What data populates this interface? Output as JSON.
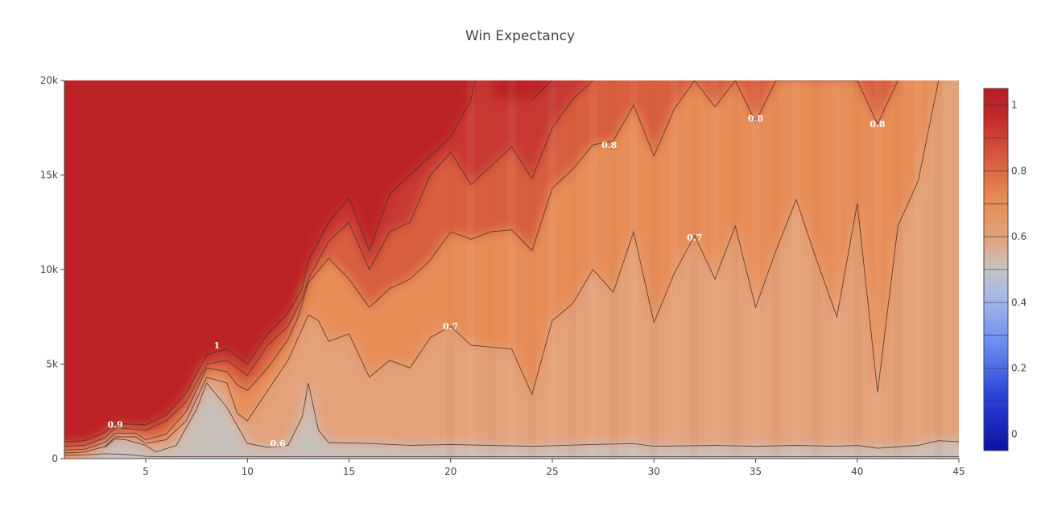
{
  "chart_data": {
    "type": "contour",
    "title": "Win Expectancy",
    "xlabel": "",
    "ylabel": "",
    "xlim": [
      1,
      45
    ],
    "ylim": [
      0,
      20000
    ],
    "x_ticks": [
      {
        "value": 5,
        "label": "5"
      },
      {
        "value": 10,
        "label": "10"
      },
      {
        "value": 15,
        "label": "15"
      },
      {
        "value": 20,
        "label": "20"
      },
      {
        "value": 25,
        "label": "25"
      },
      {
        "value": 30,
        "label": "30"
      },
      {
        "value": 35,
        "label": "35"
      },
      {
        "value": 40,
        "label": "40"
      },
      {
        "value": 45,
        "label": "45"
      }
    ],
    "y_ticks": [
      {
        "value": 0,
        "label": "0"
      },
      {
        "value": 5000,
        "label": "5k"
      },
      {
        "value": 10000,
        "label": "10k"
      },
      {
        "value": 15000,
        "label": "15k"
      },
      {
        "value": 20000,
        "label": "20k"
      }
    ],
    "colorbar": {
      "range": [
        -0.05,
        1.05
      ],
      "ticks": [
        {
          "value": 0,
          "label": "0"
        },
        {
          "value": 0.2,
          "label": "0.2"
        },
        {
          "value": 0.4,
          "label": "0.4"
        },
        {
          "value": 0.6,
          "label": "0.6"
        },
        {
          "value": 0.8,
          "label": "0.8"
        },
        {
          "value": 1,
          "label": "1"
        }
      ],
      "levels": [
        0,
        0.1,
        0.2,
        0.3,
        0.4,
        0.5,
        0.6,
        0.7,
        0.8,
        0.9,
        1.0
      ],
      "colorscale": [
        [
          0.0,
          "#0a10a8"
        ],
        [
          0.15,
          "#2a43d8"
        ],
        [
          0.3,
          "#6f8ef2"
        ],
        [
          0.42,
          "#a3b8e8"
        ],
        [
          0.5,
          "#c6c3c0"
        ],
        [
          0.58,
          "#e2a47e"
        ],
        [
          0.7,
          "#e88a52"
        ],
        [
          0.82,
          "#d5553c"
        ],
        [
          0.92,
          "#c22a2c"
        ],
        [
          1.0,
          "#b71c24"
        ]
      ]
    },
    "contours": [
      {
        "level": 0.6,
        "points": [
          [
            1,
            180
          ],
          [
            2,
            200
          ],
          [
            3,
            260
          ],
          [
            4,
            220
          ],
          [
            5,
            120
          ],
          [
            6,
            100
          ],
          [
            45,
            100
          ]
        ]
      },
      {
        "level": 0.6,
        "points": [
          [
            3,
            600
          ],
          [
            3.5,
            1050
          ],
          [
            4,
            1000
          ],
          [
            5,
            700
          ],
          [
            5.5,
            350
          ],
          [
            6.5,
            700
          ],
          [
            7.5,
            2600
          ],
          [
            8,
            4000
          ],
          [
            9,
            2700
          ],
          [
            10,
            800
          ],
          [
            11,
            600
          ],
          [
            12,
            700
          ],
          [
            12.7,
            2200
          ],
          [
            13,
            4000
          ],
          [
            13.5,
            1500
          ],
          [
            14,
            850
          ],
          [
            16,
            800
          ],
          [
            18,
            700
          ],
          [
            20,
            750
          ],
          [
            24,
            650
          ],
          [
            27,
            750
          ],
          [
            29,
            800
          ],
          [
            30,
            650
          ],
          [
            33,
            700
          ],
          [
            35,
            650
          ],
          [
            37,
            700
          ],
          [
            39,
            650
          ],
          [
            40,
            700
          ],
          [
            41,
            550
          ],
          [
            43,
            700
          ],
          [
            44,
            950
          ],
          [
            45,
            900
          ]
        ]
      },
      {
        "level": 0.7,
        "points": [
          [
            1,
            300
          ],
          [
            2,
            350
          ],
          [
            3,
            650
          ],
          [
            3.5,
            1150
          ],
          [
            4.5,
            1150
          ],
          [
            5,
            800
          ],
          [
            6,
            1000
          ],
          [
            7,
            2000
          ],
          [
            8,
            4300
          ],
          [
            9,
            4000
          ],
          [
            9.5,
            2400
          ],
          [
            10,
            2000
          ],
          [
            11,
            3600
          ],
          [
            12,
            5200
          ],
          [
            13,
            7600
          ],
          [
            13.5,
            7300
          ],
          [
            14,
            6200
          ],
          [
            15,
            6600
          ],
          [
            16,
            4300
          ],
          [
            17,
            5200
          ],
          [
            18,
            4800
          ],
          [
            19,
            6400
          ],
          [
            20,
            7000
          ],
          [
            21,
            6000
          ],
          [
            22,
            5900
          ],
          [
            23,
            5800
          ],
          [
            24,
            3400
          ],
          [
            25,
            7300
          ],
          [
            26,
            8200
          ],
          [
            27,
            10000
          ],
          [
            28,
            8800
          ],
          [
            29,
            12000
          ],
          [
            30,
            7200
          ],
          [
            31,
            9800
          ],
          [
            32,
            11800
          ],
          [
            33,
            9500
          ],
          [
            34,
            12300
          ],
          [
            35,
            8000
          ],
          [
            36,
            11000
          ],
          [
            37,
            13700
          ],
          [
            38,
            10500
          ],
          [
            39,
            7500
          ],
          [
            40,
            13500
          ],
          [
            41,
            3500
          ],
          [
            42,
            12300
          ],
          [
            43,
            14700
          ],
          [
            44,
            20000
          ]
        ]
      },
      {
        "level": 0.8,
        "points": [
          [
            1,
            450
          ],
          [
            2,
            500
          ],
          [
            3,
            850
          ],
          [
            3.5,
            1350
          ],
          [
            4.5,
            1350
          ],
          [
            5,
            1000
          ],
          [
            6,
            1300
          ],
          [
            7,
            2500
          ],
          [
            8,
            4800
          ],
          [
            9,
            4600
          ],
          [
            9.5,
            3900
          ],
          [
            10,
            3600
          ],
          [
            11,
            4800
          ],
          [
            12,
            6300
          ],
          [
            12.5,
            7500
          ],
          [
            13,
            9300
          ],
          [
            14,
            10600
          ],
          [
            15,
            9500
          ],
          [
            16,
            8000
          ],
          [
            17,
            9000
          ],
          [
            18,
            9500
          ],
          [
            19,
            10500
          ],
          [
            20,
            12000
          ],
          [
            21,
            11600
          ],
          [
            22,
            12000
          ],
          [
            23,
            12100
          ],
          [
            24,
            11000
          ],
          [
            25,
            14300
          ],
          [
            26,
            15300
          ],
          [
            27,
            16600
          ],
          [
            28,
            16800
          ],
          [
            29,
            18700
          ],
          [
            30,
            16000
          ],
          [
            31,
            18500
          ],
          [
            32,
            20000
          ],
          [
            33,
            18600
          ],
          [
            34,
            20000
          ],
          [
            35,
            17800
          ],
          [
            36,
            20000
          ],
          [
            40,
            20000
          ],
          [
            41,
            17700
          ],
          [
            42,
            20000
          ]
        ]
      },
      {
        "level": 0.9,
        "points": [
          [
            1,
            650
          ],
          [
            2,
            700
          ],
          [
            3,
            1100
          ],
          [
            3.5,
            1650
          ],
          [
            5,
            1500
          ],
          [
            6,
            2000
          ],
          [
            7,
            3000
          ],
          [
            8,
            5000
          ],
          [
            9,
            5200
          ],
          [
            10,
            4400
          ],
          [
            11,
            6000
          ],
          [
            12,
            7000
          ],
          [
            12.7,
            8500
          ],
          [
            13,
            9500
          ],
          [
            14,
            11500
          ],
          [
            15,
            12500
          ],
          [
            16,
            10000
          ],
          [
            17,
            12000
          ],
          [
            18,
            12500
          ],
          [
            19,
            15000
          ],
          [
            20,
            16200
          ],
          [
            21,
            14500
          ],
          [
            22,
            15500
          ],
          [
            23,
            16500
          ],
          [
            24,
            14800
          ],
          [
            25,
            17500
          ],
          [
            26,
            19000
          ],
          [
            27,
            20000
          ]
        ]
      },
      {
        "level": 1.0,
        "points": [
          [
            1,
            900
          ],
          [
            2,
            950
          ],
          [
            3,
            1400
          ],
          [
            3.5,
            1850
          ],
          [
            5,
            1800
          ],
          [
            6,
            2300
          ],
          [
            7,
            3500
          ],
          [
            8,
            5500
          ],
          [
            9,
            5800
          ],
          [
            10,
            5000
          ],
          [
            11,
            6600
          ],
          [
            12,
            7700
          ],
          [
            12.7,
            9000
          ],
          [
            13,
            10500
          ],
          [
            14,
            12500
          ],
          [
            15,
            13800
          ],
          [
            16,
            11000
          ],
          [
            17,
            14000
          ],
          [
            18,
            15000
          ],
          [
            19,
            16000
          ],
          [
            20,
            17000
          ],
          [
            21,
            19000
          ],
          [
            21.2,
            20000
          ]
        ]
      },
      {
        "level": 1.0,
        "points": [
          [
            24,
            19000
          ],
          [
            25,
            20000
          ]
        ]
      }
    ],
    "contour_labels": [
      {
        "text": "0.9",
        "x": 3.5,
        "y": 1800
      },
      {
        "text": "1",
        "x": 8.5,
        "y": 6000
      },
      {
        "text": "0.6",
        "x": 11.5,
        "y": 800
      },
      {
        "text": "0.7",
        "x": 20,
        "y": 7000
      },
      {
        "text": "0.7",
        "x": 32,
        "y": 11700
      },
      {
        "text": "0.8",
        "x": 27.8,
        "y": 16600
      },
      {
        "text": "0.8",
        "x": 35,
        "y": 18000
      },
      {
        "text": "0.8",
        "x": 41,
        "y": 17700
      }
    ]
  }
}
